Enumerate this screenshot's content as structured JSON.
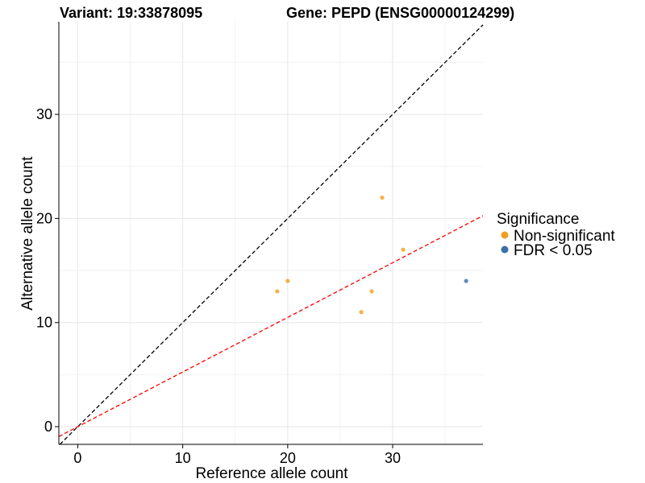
{
  "chart_data": {
    "type": "scatter",
    "title_left": "Variant: 19:33878095",
    "title_right": "Gene: PEPD (ENSG00000124299)",
    "xlabel": "Reference allele count",
    "ylabel": "Alternative allele count",
    "xlim": [
      -1.8,
      38.6
    ],
    "ylim": [
      -1.7,
      38.9
    ],
    "x_ticks": [
      0,
      10,
      20,
      30
    ],
    "y_ticks": [
      0,
      10,
      20,
      30
    ],
    "grid": true,
    "legend": {
      "title": "Significance",
      "position": "right",
      "entries": [
        {
          "label": "Non-significant",
          "color": "#F39C1E"
        },
        {
          "label": "FDR < 0.05",
          "color": "#3A6FA7"
        }
      ]
    },
    "series": [
      {
        "name": "Non-significant",
        "color": "#F39C1E",
        "points": [
          {
            "x": 19,
            "y": 13
          },
          {
            "x": 20,
            "y": 14
          },
          {
            "x": 27,
            "y": 11
          },
          {
            "x": 28,
            "y": 13
          },
          {
            "x": 29,
            "y": 22
          },
          {
            "x": 31,
            "y": 17
          }
        ]
      },
      {
        "name": "FDR < 0.05",
        "color": "#3A6FA7",
        "points": [
          {
            "x": 37,
            "y": 14
          }
        ]
      }
    ],
    "reference_lines": [
      {
        "slope": 1.0,
        "intercept": 0,
        "color": "#000000",
        "style": "dashed"
      },
      {
        "slope": 0.525,
        "intercept": 0,
        "color": "#FF0000",
        "style": "dashed"
      }
    ]
  }
}
